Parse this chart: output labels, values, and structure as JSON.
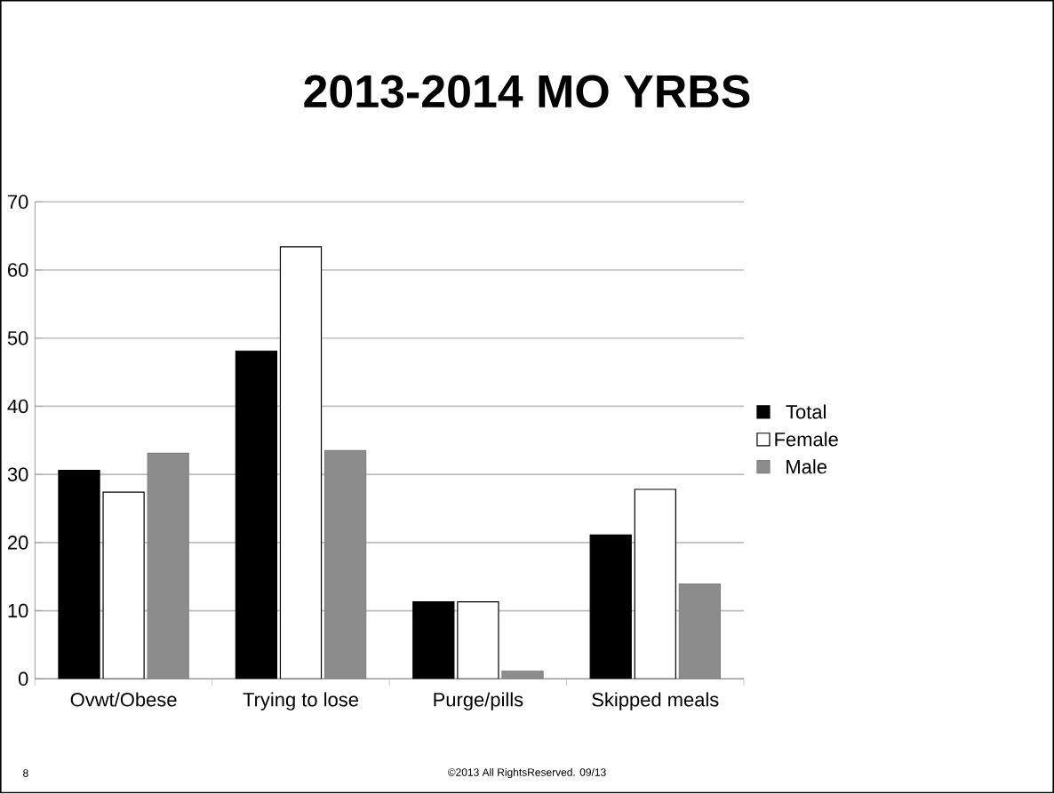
{
  "chart_data": {
    "type": "bar",
    "title": "2013-2014 MO YRBS",
    "categories": [
      "Ovwt/Obese",
      "Trying to lose",
      "Purge/pills",
      "Skipped meals"
    ],
    "series": [
      {
        "name": "Total",
        "color": "#000000",
        "values": [
          30.6,
          48.1,
          11.3,
          21.1
        ]
      },
      {
        "name": "Female",
        "color": "#ffffff",
        "values": [
          27.4,
          63.4,
          11.3,
          27.8
        ]
      },
      {
        "name": "Male",
        "color": "#8c8c8c",
        "values": [
          33.1,
          33.5,
          1.1,
          13.9
        ]
      }
    ],
    "ylim": [
      0,
      70
    ],
    "yticks": [
      0,
      10,
      20,
      30,
      40,
      50,
      60,
      70
    ],
    "grid": "y",
    "legend": "right",
    "annotations": [
      "8",
      "©2013 All RightsReserved. 09/13"
    ]
  }
}
